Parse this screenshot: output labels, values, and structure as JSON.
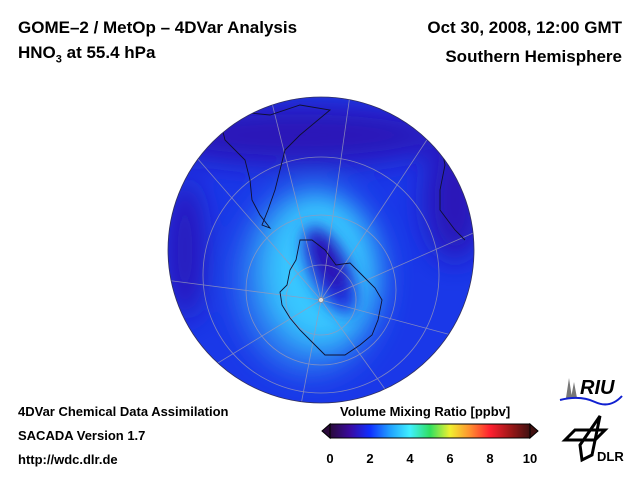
{
  "header": {
    "title_line1": "GOME–2 / MetOp – 4DVar Analysis",
    "species_prefix": "HNO",
    "species_sub": "3",
    "level": " at 55.4 hPa",
    "datetime": "Oct 30, 2008, 12:00 GMT",
    "region": "Southern Hemisphere"
  },
  "footer": {
    "line1": "4DVar Chemical Data Assimilation",
    "line2": "SACADA Version 1.7",
    "line3": "http://wdc.dlr.de"
  },
  "colorbar": {
    "title": "Volume Mixing Ratio [ppbv]",
    "ticks": [
      "0",
      "2",
      "4",
      "6",
      "8",
      "10"
    ],
    "range": [
      0,
      10
    ],
    "colors": [
      "#2a0a3a",
      "#3a0aa0",
      "#1030ff",
      "#20a0ff",
      "#40f0ff",
      "#30e060",
      "#f0f030",
      "#ff9030",
      "#ff2030",
      "#a01818",
      "#401010"
    ]
  },
  "logos": {
    "riu": "RIU",
    "dlr": "DLR"
  }
}
